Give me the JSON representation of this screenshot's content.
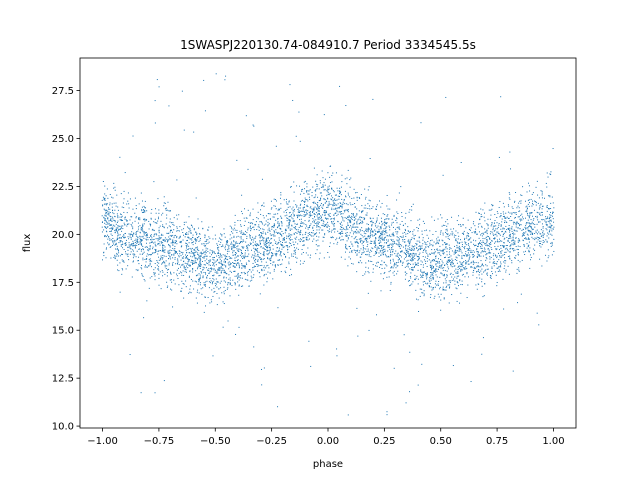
{
  "chart_data": {
    "type": "scatter",
    "title": "1SWASPJ220130.74-084910.7 Period 3334545.5s",
    "xlabel": "phase",
    "ylabel": "flux",
    "xlim": [
      -1.1,
      1.1
    ],
    "ylim": [
      9.9,
      29.2
    ],
    "xticks": [
      -1.0,
      -0.75,
      -0.5,
      -0.25,
      0.0,
      0.25,
      0.5,
      0.75,
      1.0
    ],
    "xtick_labels": [
      "−1.00",
      "−0.75",
      "−0.50",
      "−0.25",
      "0.00",
      "0.25",
      "0.50",
      "0.75",
      "1.00"
    ],
    "yticks": [
      10.0,
      12.5,
      15.0,
      17.5,
      20.0,
      22.5,
      25.0,
      27.5
    ],
    "ytick_labels": [
      "10.0",
      "12.5",
      "15.0",
      "17.5",
      "20.0",
      "22.5",
      "25.0",
      "27.5"
    ],
    "grid": false,
    "marker_color": "#1f77b4",
    "phase_range": [
      -1.0,
      1.0
    ],
    "mean_flux_profile": {
      "phase": [
        -1.0,
        -0.9,
        -0.8,
        -0.7,
        -0.6,
        -0.55,
        -0.5,
        -0.4,
        -0.3,
        -0.2,
        -0.1,
        0.0,
        0.1,
        0.2,
        0.3,
        0.4,
        0.45,
        0.5,
        0.6,
        0.7,
        0.8,
        0.9,
        1.0
      ],
      "flux": [
        20.8,
        20.0,
        19.7,
        19.4,
        18.8,
        18.3,
        18.5,
        18.9,
        19.3,
        20.0,
        20.8,
        21.3,
        20.6,
        19.8,
        19.4,
        18.9,
        18.3,
        18.6,
        19.0,
        19.3,
        19.9,
        20.4,
        20.8
      ]
    },
    "scatter_half_width": 2.6,
    "outlier_flux_range": [
      10.5,
      28.4
    ]
  }
}
